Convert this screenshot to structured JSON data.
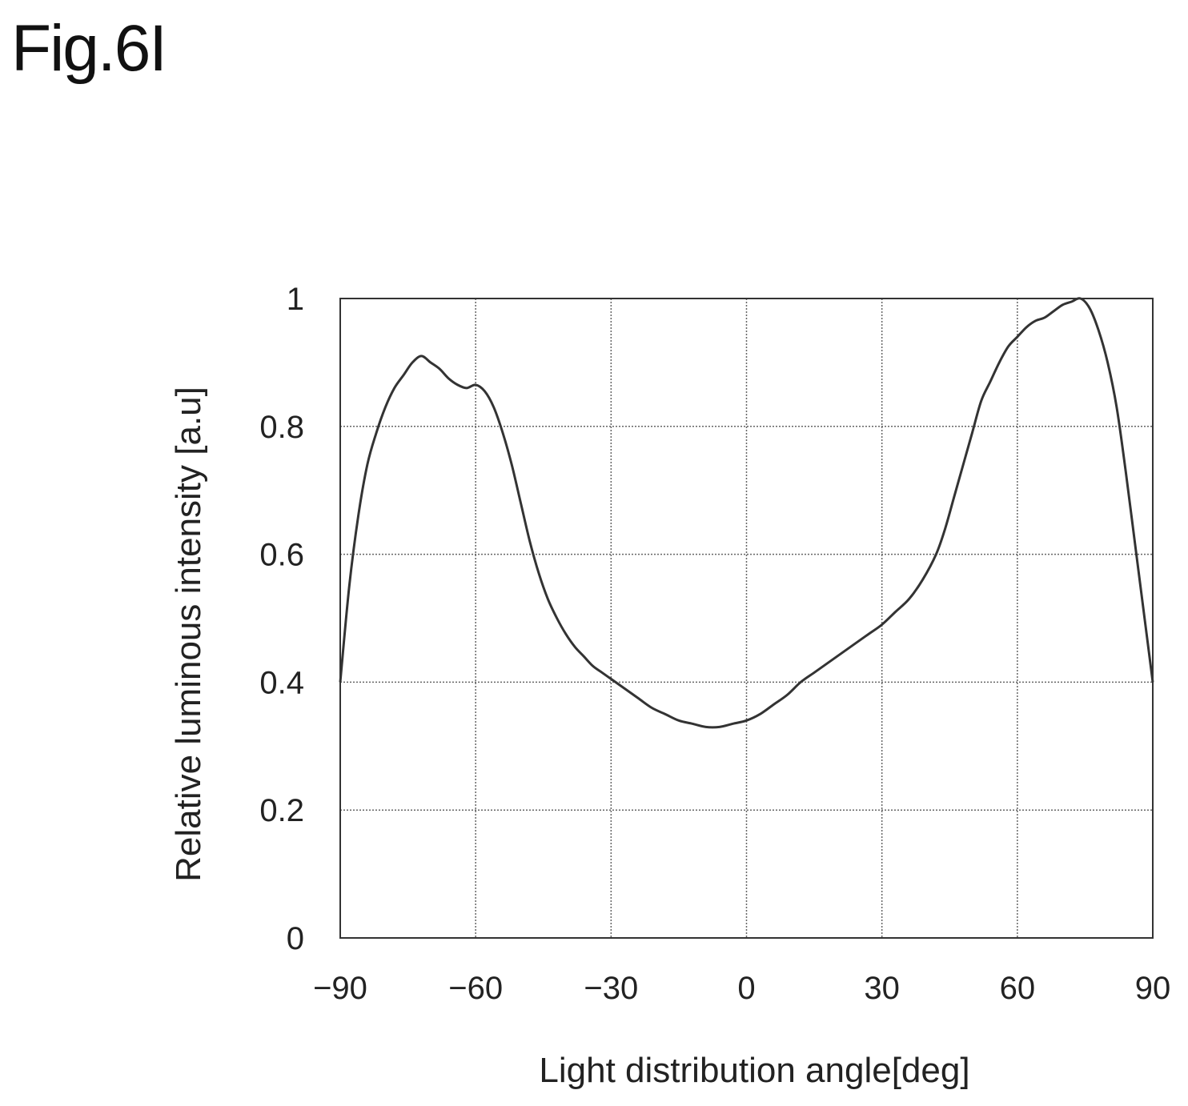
{
  "figure_label": "Fig.6I",
  "chart_data": {
    "type": "line",
    "title": "",
    "xlabel": "Light distribution angle[deg]",
    "ylabel": "Relative luminous intensity [a.u]",
    "xlim": [
      -90,
      90
    ],
    "ylim": [
      0,
      1
    ],
    "xticks": [
      -90,
      -60,
      -30,
      0,
      30,
      60,
      90
    ],
    "xtick_labels": [
      "−90",
      "−60",
      "−30",
      "0",
      "30",
      "60",
      "90"
    ],
    "yticks": [
      0,
      0.2,
      0.4,
      0.6,
      0.8,
      1
    ],
    "ytick_labels": [
      "0",
      "0.2",
      "0.4",
      "0.6",
      "0.8",
      "1"
    ],
    "grid": true,
    "legend": "none",
    "series": [
      {
        "color": "#333333",
        "x": [
          -90,
          -88,
          -86,
          -84,
          -82,
          -80,
          -78,
          -76,
          -74,
          -72,
          -70,
          -68,
          -66,
          -64,
          -62,
          -60,
          -58,
          -56,
          -54,
          -52,
          -50,
          -48,
          -46,
          -44,
          -42,
          -40,
          -38,
          -36,
          -34,
          -32,
          -30,
          -27,
          -24,
          -21,
          -18,
          -15,
          -12,
          -9,
          -6,
          -3,
          0,
          3,
          6,
          9,
          12,
          15,
          18,
          21,
          24,
          27,
          30,
          33,
          36,
          39,
          42,
          44,
          46,
          48,
          50,
          52,
          54,
          56,
          58,
          60,
          62,
          64,
          66,
          68,
          70,
          72,
          74,
          76,
          78,
          80,
          82,
          84,
          86,
          88,
          90
        ],
        "y": [
          0.4,
          0.55,
          0.66,
          0.74,
          0.79,
          0.83,
          0.86,
          0.88,
          0.9,
          0.91,
          0.9,
          0.89,
          0.875,
          0.865,
          0.86,
          0.865,
          0.855,
          0.83,
          0.79,
          0.74,
          0.68,
          0.62,
          0.57,
          0.53,
          0.5,
          0.475,
          0.455,
          0.44,
          0.425,
          0.415,
          0.405,
          0.39,
          0.375,
          0.36,
          0.35,
          0.34,
          0.335,
          0.33,
          0.33,
          0.335,
          0.34,
          0.35,
          0.365,
          0.38,
          0.4,
          0.415,
          0.43,
          0.445,
          0.46,
          0.475,
          0.49,
          0.51,
          0.53,
          0.56,
          0.6,
          0.64,
          0.69,
          0.74,
          0.79,
          0.84,
          0.87,
          0.9,
          0.925,
          0.94,
          0.955,
          0.965,
          0.97,
          0.98,
          0.99,
          0.995,
          1.0,
          0.985,
          0.95,
          0.9,
          0.83,
          0.73,
          0.62,
          0.51,
          0.4
        ]
      }
    ]
  }
}
